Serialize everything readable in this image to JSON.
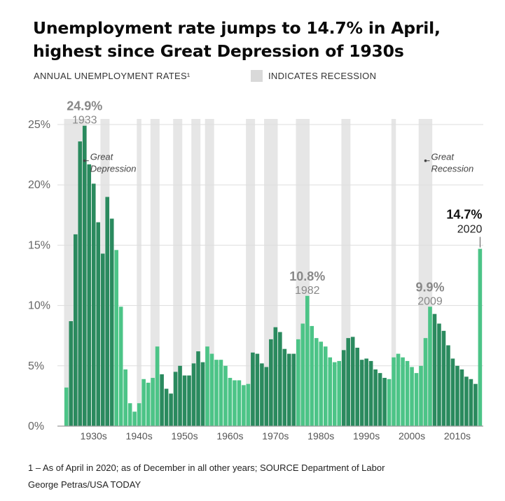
{
  "title_line1": "Unemployment rate jumps to 14.7% in April,",
  "title_line2": "highest since Great Depression of 1930s",
  "subtitle": "ANNUAL UNEMPLOYMENT RATES¹",
  "legend_label": "INDICATES RECESSION",
  "footnote": "1 – As of April in 2020; as of December in all other years; SOURCE Department of Labor",
  "credit": "George Petras/USA TODAY",
  "colors": {
    "bar_dark": "#2a8a5e",
    "bar_light": "#4cc487",
    "recession": "#e6e6e6",
    "highlight_dark": "#888888",
    "highlight_latest": "#111111"
  },
  "chart_data": {
    "type": "bar",
    "ylim": [
      0,
      25
    ],
    "y_ticks": [
      0,
      5,
      10,
      15,
      20,
      25
    ],
    "y_tick_labels": [
      "0%",
      "5%",
      "10%",
      "15%",
      "20%",
      "25%"
    ],
    "x_tick_labels": [
      "1930s",
      "1940s",
      "1950s",
      "1960s",
      "1970s",
      "1980s",
      "1990s",
      "2000s",
      "2010s"
    ],
    "x_tick_positions": [
      1935,
      1945,
      1955,
      1965,
      1975,
      1985,
      1995,
      2005,
      2015
    ],
    "grid": true,
    "legend": "top",
    "categories": [
      1929,
      1930,
      1931,
      1932,
      1933,
      1934,
      1935,
      1936,
      1937,
      1938,
      1939,
      1940,
      1941,
      1942,
      1943,
      1944,
      1945,
      1946,
      1947,
      1948,
      1949,
      1950,
      1951,
      1952,
      1953,
      1954,
      1955,
      1956,
      1957,
      1958,
      1959,
      1960,
      1961,
      1962,
      1963,
      1964,
      1965,
      1966,
      1967,
      1968,
      1969,
      1970,
      1971,
      1972,
      1973,
      1974,
      1975,
      1976,
      1977,
      1978,
      1979,
      1980,
      1981,
      1982,
      1983,
      1984,
      1985,
      1986,
      1987,
      1988,
      1989,
      1990,
      1991,
      1992,
      1993,
      1994,
      1995,
      1996,
      1997,
      1998,
      1999,
      2000,
      2001,
      2002,
      2003,
      2004,
      2005,
      2006,
      2007,
      2008,
      2009,
      2010,
      2011,
      2012,
      2013,
      2014,
      2015,
      2016,
      2017,
      2018,
      2019,
      2020
    ],
    "values": [
      3.2,
      8.7,
      15.9,
      23.6,
      24.9,
      21.7,
      20.1,
      16.9,
      14.3,
      19.0,
      17.2,
      14.6,
      9.9,
      4.7,
      1.9,
      1.2,
      1.9,
      3.9,
      3.6,
      4.0,
      6.6,
      4.3,
      3.1,
      2.7,
      4.5,
      5.0,
      4.2,
      4.2,
      5.2,
      6.2,
      5.3,
      6.6,
      6.0,
      5.5,
      5.5,
      5.0,
      4.0,
      3.8,
      3.8,
      3.4,
      3.5,
      6.1,
      6.0,
      5.2,
      4.9,
      7.2,
      8.2,
      7.8,
      6.4,
      6.0,
      6.0,
      7.2,
      8.5,
      10.8,
      8.3,
      7.3,
      7.0,
      6.6,
      5.7,
      5.3,
      5.4,
      6.3,
      7.3,
      7.4,
      6.5,
      5.5,
      5.6,
      5.4,
      4.7,
      4.4,
      4.0,
      3.9,
      5.7,
      6.0,
      5.7,
      5.4,
      4.9,
      4.4,
      5.0,
      7.3,
      9.9,
      9.3,
      8.5,
      7.9,
      6.7,
      5.6,
      5.0,
      4.7,
      4.1,
      3.9,
      3.5,
      14.7
    ],
    "recessions": [
      [
        1929,
        1933
      ],
      [
        1937,
        1938
      ],
      [
        1945,
        1945
      ],
      [
        1948,
        1949
      ],
      [
        1953,
        1954
      ],
      [
        1957,
        1958
      ],
      [
        1960,
        1961
      ],
      [
        1969,
        1970
      ],
      [
        1973,
        1975
      ],
      [
        1980,
        1980
      ],
      [
        1981,
        1982
      ],
      [
        1990,
        1991
      ],
      [
        2001,
        2001
      ],
      [
        2007,
        2009
      ]
    ],
    "highlights": [
      {
        "year": 1933,
        "value_label": "24.9%",
        "year_label": "1933"
      },
      {
        "year": 1982,
        "value_label": "10.8%",
        "year_label": "1982"
      },
      {
        "year": 2009,
        "value_label": "9.9%",
        "year_label": "2009"
      },
      {
        "year": 2020,
        "value_label": "14.7%",
        "year_label": "2020"
      }
    ],
    "annotations": [
      {
        "text_line1": "Great",
        "text_line2": "Depression",
        "year": 1933,
        "y": 22.0
      },
      {
        "text_line1": "Great",
        "text_line2": "Recession",
        "year": 2008,
        "y": 22.0
      }
    ]
  }
}
